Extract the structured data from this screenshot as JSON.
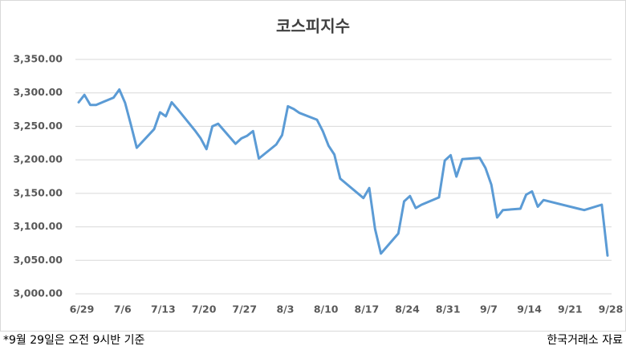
{
  "chart_data": {
    "type": "line",
    "title": "코스피지수",
    "x": [
      "6/29",
      "6/30",
      "7/1",
      "7/2",
      "7/5",
      "7/6",
      "7/7",
      "7/8",
      "7/9",
      "7/12",
      "7/13",
      "7/14",
      "7/15",
      "7/16",
      "7/19",
      "7/20",
      "7/21",
      "7/22",
      "7/23",
      "7/26",
      "7/27",
      "7/28",
      "7/29",
      "7/30",
      "8/2",
      "8/3",
      "8/4",
      "8/5",
      "8/6",
      "8/9",
      "8/10",
      "8/11",
      "8/12",
      "8/13",
      "8/17",
      "8/18",
      "8/19",
      "8/20",
      "8/23",
      "8/24",
      "8/25",
      "8/26",
      "8/27",
      "8/30",
      "8/31",
      "9/1",
      "9/2",
      "9/3",
      "9/6",
      "9/7",
      "9/8",
      "9/9",
      "9/10",
      "9/13",
      "9/14",
      "9/15",
      "9/16",
      "9/17",
      "9/23",
      "9/24",
      "9/27",
      "9/28"
    ],
    "series": [
      {
        "name": "코스피지수",
        "color": "#5b9bd5",
        "values": [
          3286,
          3297,
          3282,
          3282,
          3293,
          3305,
          3285,
          3252,
          3218,
          3246,
          3271,
          3265,
          3286,
          3276,
          3244,
          3232,
          3216,
          3250,
          3254,
          3224,
          3232,
          3236,
          3243,
          3202,
          3223,
          3237,
          3280,
          3276,
          3270,
          3260,
          3243,
          3221,
          3208,
          3172,
          3143,
          3158,
          3097,
          3060,
          3090,
          3138,
          3146,
          3128,
          3133,
          3144,
          3199,
          3207,
          3175,
          3201,
          3203,
          3188,
          3163,
          3114,
          3125,
          3127,
          3148,
          3153,
          3130,
          3140,
          3127,
          3125,
          3133,
          3057
        ]
      }
    ],
    "xticks": [
      "6/29",
      "7/6",
      "7/13",
      "7/20",
      "7/27",
      "8/3",
      "8/10",
      "8/17",
      "8/24",
      "8/31",
      "9/7",
      "9/14",
      "9/21",
      "9/28"
    ],
    "ylim": [
      3000,
      3350
    ],
    "yticks": [
      {
        "value": 3000,
        "label": "3,000.00"
      },
      {
        "value": 3050,
        "label": "3,050.00"
      },
      {
        "value": 3100,
        "label": "3,100.00"
      },
      {
        "value": 3150,
        "label": "3,150.00"
      },
      {
        "value": 3200,
        "label": "3,200.00"
      },
      {
        "value": 3250,
        "label": "3,250.00"
      },
      {
        "value": 3300,
        "label": "3,300.00"
      },
      {
        "value": 3350,
        "label": "3,350.00"
      }
    ],
    "grid": true,
    "note": "*9월 29일은 오전 9시반 기준",
    "source": "한국거래소 자료"
  }
}
